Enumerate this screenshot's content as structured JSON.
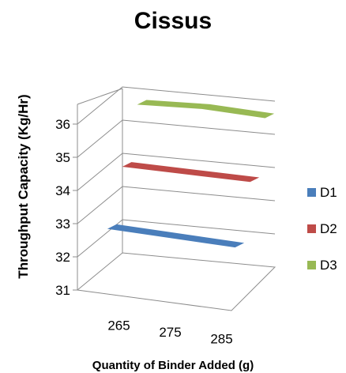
{
  "chart_data": {
    "type": "line",
    "view": "3d",
    "title": "Cissus",
    "xlabel": "Quantity of Binder Added (g)",
    "ylabel": "Throughput Capacity (Kg/Hr)",
    "categories": [
      "265",
      "275",
      "285"
    ],
    "ylim": [
      31,
      36
    ],
    "yticks": [
      "31",
      "32",
      "33",
      "34",
      "35",
      "36"
    ],
    "grid": true,
    "legend_position": "right",
    "series": [
      {
        "name": "D1",
        "values": [
          32.8,
          32.7,
          32.6
        ],
        "color": "#4a7ebb"
      },
      {
        "name": "D2",
        "values": [
          34.3,
          34.25,
          34.2
        ],
        "color": "#be4b48"
      },
      {
        "name": "D3",
        "values": [
          35.8,
          35.85,
          35.75
        ],
        "color": "#98b954"
      }
    ]
  }
}
